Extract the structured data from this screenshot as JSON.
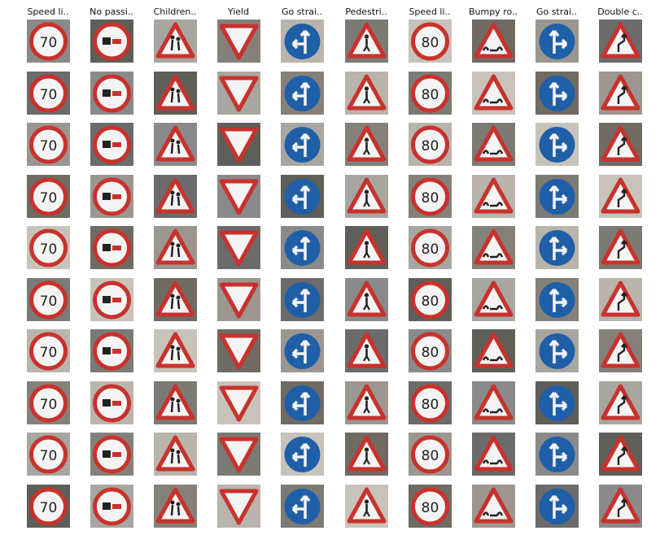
{
  "columns": [
    {
      "title": "Speed li..",
      "sign": "speed-limit-70"
    },
    {
      "title": "No passi..",
      "sign": "no-passing-trucks"
    },
    {
      "title": "Children..",
      "sign": "children-crossing"
    },
    {
      "title": "Yield",
      "sign": "yield"
    },
    {
      "title": "Go strai..",
      "sign": "go-straight-or-left"
    },
    {
      "title": "Pedestri..",
      "sign": "pedestrians"
    },
    {
      "title": "Speed li..",
      "sign": "speed-limit-80"
    },
    {
      "title": "Bumpy ro..",
      "sign": "bumpy-road"
    },
    {
      "title": "Go strai..",
      "sign": "go-straight-or-right"
    },
    {
      "title": "Double c..",
      "sign": "double-curve"
    }
  ],
  "rows": 10,
  "sign_text": {
    "speed-limit-70": "70",
    "speed-limit-80": "80"
  },
  "colors": {
    "red": "#c8322d",
    "blue": "#1f5fa8",
    "white": "#f4f4f4",
    "dark": "#222222"
  }
}
